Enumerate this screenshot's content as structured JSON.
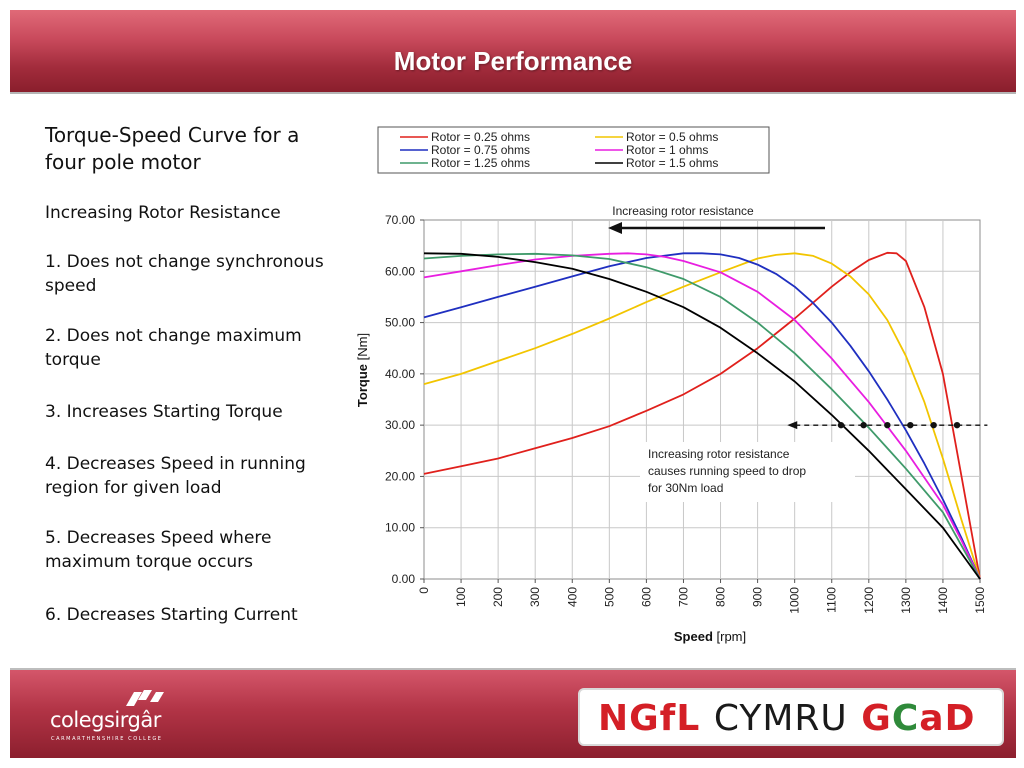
{
  "slide": {
    "title": "Motor Performance",
    "subtitle": "Torque-Speed Curve for a four pole motor",
    "section_heading": "Increasing Rotor Resistance",
    "points": [
      "1. Does not change synchronous speed",
      "2. Does not change maximum torque",
      "3. Increases Starting Torque",
      "4. Decreases Speed in running region for given load",
      "5. Decreases Speed where maximum torque occurs",
      "6. Decreases Starting Current"
    ]
  },
  "footer": {
    "college_name": "colegsirgâr",
    "college_subtitle": "CARMARTHENSHIRE COLLEGE",
    "ngfl_part1": "NGfL",
    "ngfl_part2": "CYMRU",
    "ngfl_part3": "GCaD"
  },
  "colors": {
    "rotor_0_25": "#e0201c",
    "rotor_0_5": "#f2c500",
    "rotor_0_75": "#1f2fc0",
    "rotor_1": "#e81ee0",
    "rotor_1_25": "#3f9a6a",
    "rotor_1_5": "#000000"
  },
  "chart_data": {
    "type": "line",
    "xlabel_bold": "Speed",
    "xlabel_unit": "[rpm]",
    "ylabel_bold": "Torque",
    "ylabel_unit": "[Nm]",
    "xlim": [
      0,
      1500
    ],
    "ylim": [
      0,
      70
    ],
    "x_ticks": [
      "0",
      "100",
      "200",
      "300",
      "400",
      "500",
      "600",
      "700",
      "800",
      "900",
      "1000",
      "1100",
      "1200",
      "1300",
      "1400",
      "1500"
    ],
    "y_ticks": [
      "0.00",
      "10.00",
      "20.00",
      "30.00",
      "40.00",
      "50.00",
      "60.00",
      "70.00"
    ],
    "grid": true,
    "legend_position": "top",
    "series": [
      {
        "name": "Rotor = 0.25 ohms",
        "color": "#e0201c",
        "x": [
          0,
          100,
          200,
          300,
          400,
          500,
          600,
          700,
          800,
          900,
          1000,
          1100,
          1150,
          1200,
          1250,
          1275,
          1300,
          1350,
          1400,
          1450,
          1500
        ],
        "y": [
          20.5,
          22.0,
          23.5,
          25.5,
          27.5,
          29.8,
          32.8,
          36.0,
          40.0,
          45.0,
          50.8,
          57.0,
          59.8,
          62.2,
          63.6,
          63.5,
          62.0,
          53.0,
          40.0,
          20.0,
          0
        ]
      },
      {
        "name": "Rotor = 0.5 ohms",
        "color": "#f2c500",
        "x": [
          0,
          100,
          200,
          300,
          400,
          500,
          600,
          700,
          800,
          900,
          950,
          1000,
          1050,
          1100,
          1150,
          1200,
          1250,
          1300,
          1350,
          1400,
          1450,
          1500
        ],
        "y": [
          38.0,
          40.0,
          42.5,
          45.0,
          47.8,
          50.8,
          54.0,
          57.0,
          59.8,
          62.5,
          63.2,
          63.5,
          63.0,
          61.5,
          59.0,
          55.5,
          50.5,
          43.5,
          34.5,
          23.5,
          11.5,
          0
        ]
      },
      {
        "name": "Rotor = 0.75 ohms",
        "color": "#1f2fc0",
        "x": [
          0,
          100,
          200,
          300,
          400,
          500,
          600,
          700,
          750,
          800,
          850,
          900,
          950,
          1000,
          1050,
          1100,
          1150,
          1200,
          1250,
          1300,
          1350,
          1400,
          1450,
          1500
        ],
        "y": [
          51.0,
          53.0,
          55.0,
          57.0,
          59.0,
          61.0,
          62.6,
          63.5,
          63.5,
          63.3,
          62.6,
          61.3,
          59.5,
          57.0,
          53.8,
          50.0,
          45.5,
          40.5,
          35.0,
          29.0,
          22.5,
          15.5,
          8.0,
          0
        ]
      },
      {
        "name": "Rotor = 1 ohms",
        "color": "#e81ee0",
        "x": [
          0,
          100,
          200,
          300,
          400,
          500,
          550,
          600,
          650,
          700,
          800,
          900,
          1000,
          1100,
          1200,
          1300,
          1400,
          1450,
          1500
        ],
        "y": [
          58.8,
          60.0,
          61.2,
          62.3,
          63.0,
          63.4,
          63.5,
          63.3,
          62.8,
          62.0,
          59.8,
          56.0,
          50.5,
          43.0,
          34.5,
          25.0,
          14.5,
          7.5,
          0
        ]
      },
      {
        "name": "Rotor = 1.25 ohms",
        "color": "#3f9a6a",
        "x": [
          0,
          100,
          200,
          300,
          400,
          500,
          600,
          700,
          800,
          900,
          1000,
          1100,
          1200,
          1300,
          1400,
          1450,
          1500
        ],
        "y": [
          62.5,
          63.0,
          63.3,
          63.4,
          63.1,
          62.4,
          60.8,
          58.5,
          55.0,
          50.0,
          44.0,
          37.0,
          29.5,
          21.5,
          13.0,
          6.5,
          0
        ]
      },
      {
        "name": "Rotor = 1.5 ohms",
        "color": "#000000",
        "x": [
          0,
          100,
          200,
          300,
          400,
          500,
          600,
          700,
          800,
          900,
          1000,
          1100,
          1200,
          1300,
          1400,
          1450,
          1500
        ],
        "y": [
          63.5,
          63.4,
          62.8,
          61.8,
          60.5,
          58.5,
          56.0,
          53.0,
          49.0,
          44.0,
          38.5,
          32.0,
          25.0,
          17.5,
          10.0,
          5.0,
          0
        ]
      }
    ],
    "load_line": {
      "y": 30.0,
      "x_start": 980,
      "x_end": 1520
    },
    "load_points_x": [
      1125,
      1186,
      1250,
      1312,
      1375,
      1438
    ],
    "annotation_top": "Increasing rotor resistance",
    "annotation_bottom": [
      "Increasing rotor resistance",
      "causes running speed to drop",
      "for 30Nm load"
    ]
  }
}
